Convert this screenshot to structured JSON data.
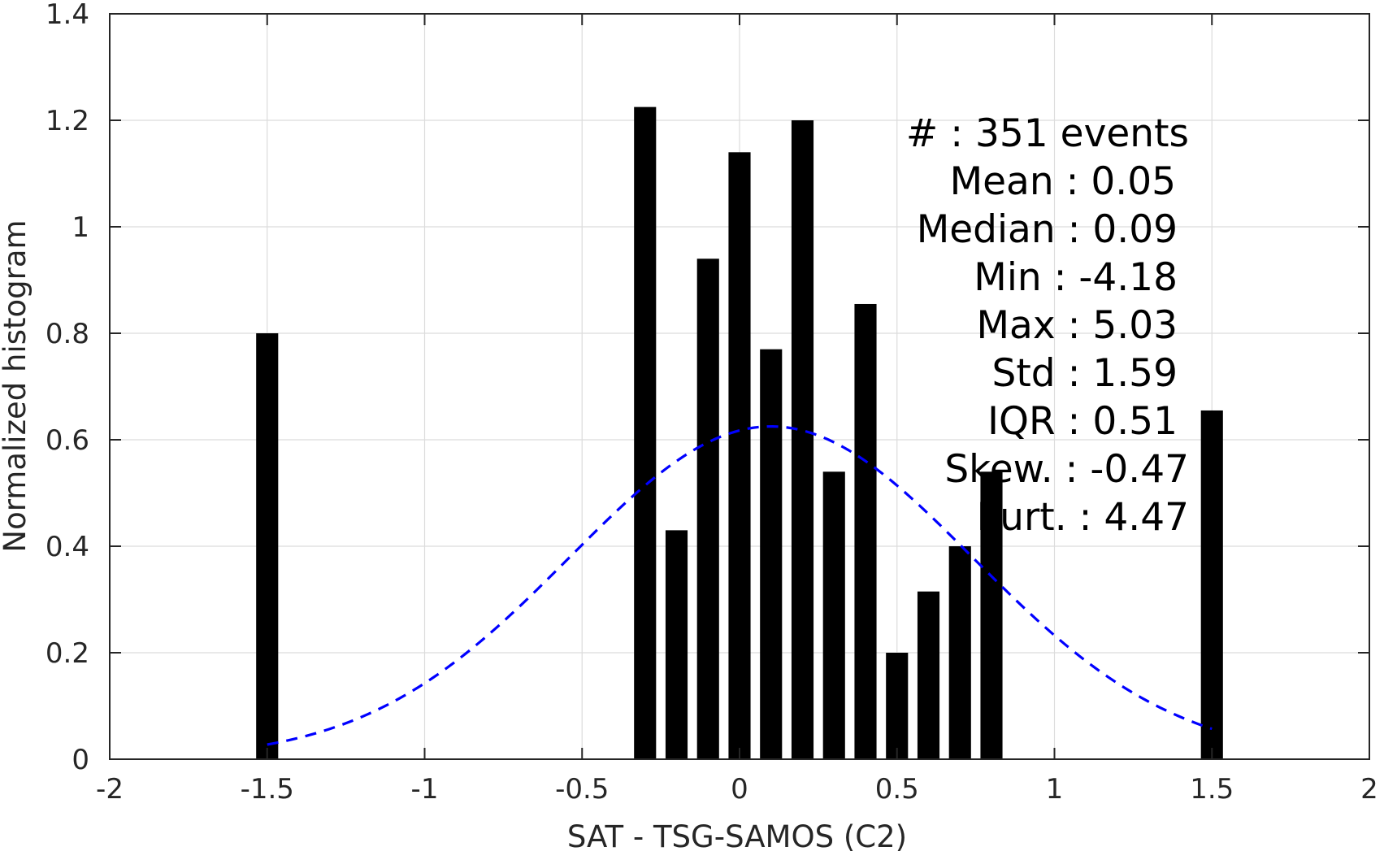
{
  "chart_data": {
    "type": "bar",
    "xlabel": "SAT - TSG-SAMOS (C2)",
    "ylabel": "Normalized histogram",
    "xlim": [
      -2,
      2
    ],
    "ylim": [
      0,
      1.4
    ],
    "x_ticks": [
      -2,
      -1.5,
      -1,
      -0.5,
      0,
      0.5,
      1,
      1.5,
      2
    ],
    "x_tick_labels": [
      "-2",
      "-1.5",
      "-1",
      "-0.5",
      "0",
      "0.5",
      "1",
      "1.5",
      "2"
    ],
    "y_ticks": [
      0,
      0.2,
      0.4,
      0.6,
      0.8,
      1,
      1.2,
      1.4
    ],
    "y_tick_labels": [
      "0",
      "0.2",
      "0.4",
      "0.6",
      "0.8",
      "1",
      "1.2",
      "1.4"
    ],
    "grid": true,
    "bar_color": "#000000",
    "bar_width": 0.07,
    "bars": [
      {
        "x": -1.5,
        "value": 0.8
      },
      {
        "x": -0.3,
        "value": 1.225
      },
      {
        "x": -0.2,
        "value": 0.43
      },
      {
        "x": -0.1,
        "value": 0.94
      },
      {
        "x": 0.0,
        "value": 1.14
      },
      {
        "x": 0.1,
        "value": 0.77
      },
      {
        "x": 0.2,
        "value": 1.2
      },
      {
        "x": 0.3,
        "value": 0.54
      },
      {
        "x": 0.4,
        "value": 0.855
      },
      {
        "x": 0.5,
        "value": 0.2
      },
      {
        "x": 0.6,
        "value": 0.315
      },
      {
        "x": 0.7,
        "value": 0.4
      },
      {
        "x": 0.8,
        "value": 0.54
      },
      {
        "x": 1.5,
        "value": 0.655
      }
    ],
    "fit_curve": {
      "type": "gaussian",
      "color": "#0000ff",
      "style": "dashed",
      "mean": 0.1,
      "peak": 0.625,
      "sigma": 0.64,
      "x_range": [
        -1.5,
        1.5
      ]
    },
    "annotations": [
      "#  : 351 events",
      "Mean : 0.05",
      "Median : 0.09",
      "Min : -4.18",
      "Max : 5.03",
      "Std : 1.59",
      "IQR : 0.51",
      "Skew. : -0.47",
      "Kurt. : 4.47"
    ],
    "annotation_position": "top-right"
  }
}
